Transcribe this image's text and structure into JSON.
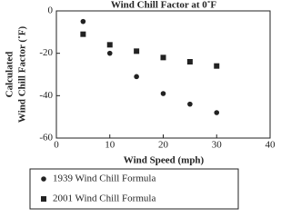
{
  "chart_data": {
    "type": "scatter",
    "title": "Wind Chill Factor at 0˚F",
    "xlabel": "Wind Speed (mph)",
    "ylabel": [
      "Calculated",
      "Wind Chill Factor (˚F)"
    ],
    "xlim": [
      0,
      40
    ],
    "xticks": [
      0,
      10,
      20,
      30,
      40
    ],
    "ylim": [
      -60,
      0
    ],
    "yticks": [
      0,
      -20,
      -40,
      -60
    ],
    "series": [
      {
        "name": "1939 Wind Chill Formula",
        "color": "#222222",
        "marker": "circle",
        "x": [
          5,
          10,
          15,
          20,
          25,
          30
        ],
        "values": [
          -5,
          -20,
          -31,
          -39,
          -44,
          -48
        ]
      },
      {
        "name": "2001 Wind Chill Formula",
        "color": "#222222",
        "marker": "square",
        "x": [
          5,
          10,
          15,
          20,
          25,
          30
        ],
        "values": [
          -11,
          -16,
          -19,
          -22,
          -24,
          -26
        ]
      }
    ]
  }
}
